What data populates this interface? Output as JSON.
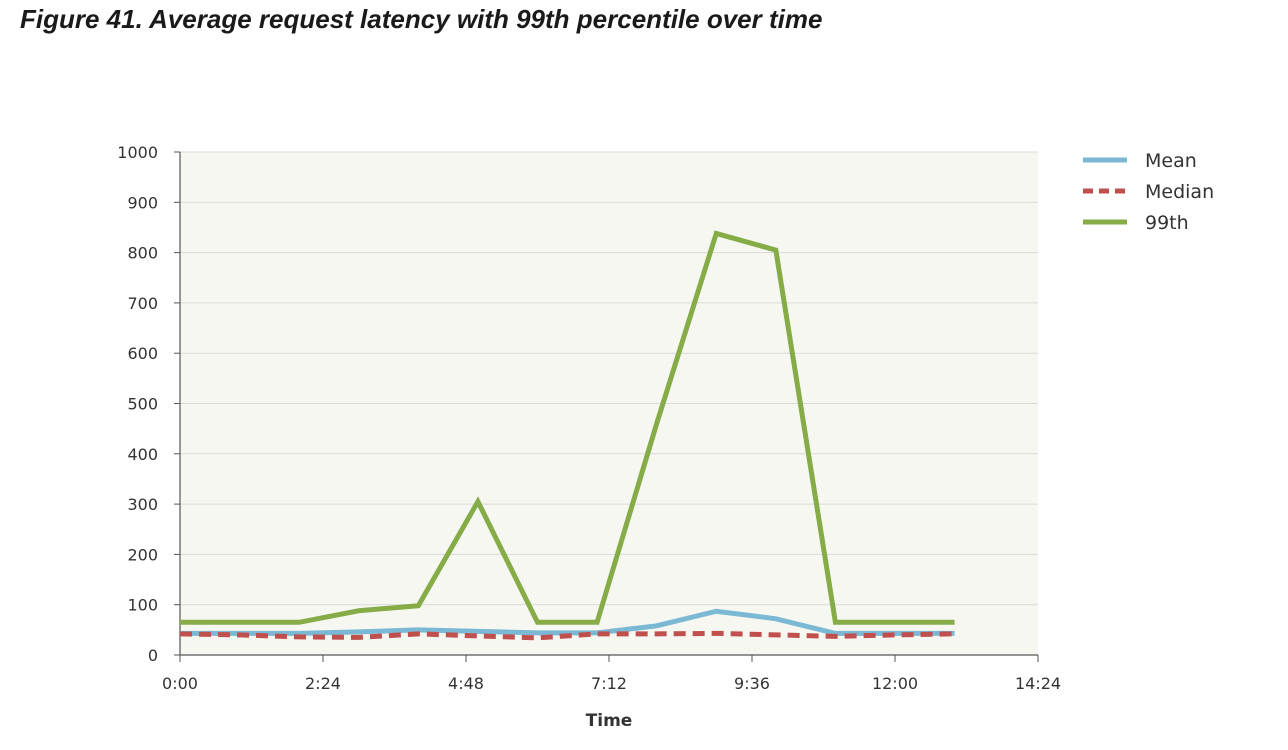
{
  "caption": "Figure 41. Average request latency with 99th percentile over time",
  "chart_data": {
    "type": "line",
    "title": "",
    "xlabel": "Time",
    "ylabel": "",
    "x_tick_labels": [
      "0:00",
      "2:24",
      "4:48",
      "7:12",
      "9:36",
      "12:00",
      "14:24"
    ],
    "x_tick_minutes": [
      0,
      144,
      288,
      432,
      576,
      720,
      864
    ],
    "y_ticks": [
      0,
      100,
      200,
      300,
      400,
      500,
      600,
      700,
      800,
      900,
      1000
    ],
    "xlim_minutes": [
      0,
      864
    ],
    "ylim": [
      0,
      1000
    ],
    "x_minutes": [
      0,
      60,
      120,
      180,
      240,
      300,
      360,
      420,
      480,
      540,
      600,
      660,
      720,
      780
    ],
    "x": [
      "0:00",
      "1:00",
      "2:00",
      "3:00",
      "4:00",
      "5:00",
      "6:00",
      "7:00",
      "8:00",
      "9:00",
      "10:00",
      "11:00",
      "12:00",
      "13:00"
    ],
    "series": [
      {
        "name": "Mean",
        "color": "#7ab8d4",
        "style": "solid",
        "values": [
          43,
          43,
          43,
          46,
          50,
          47,
          44,
          44,
          58,
          87,
          72,
          43,
          43,
          43
        ]
      },
      {
        "name": "Median",
        "color": "#c0504d",
        "style": "dashed",
        "values": [
          42,
          40,
          36,
          35,
          42,
          38,
          34,
          42,
          42,
          43,
          40,
          37,
          40,
          42
        ]
      },
      {
        "name": "99th",
        "color": "#86ac48",
        "style": "solid",
        "values": [
          65,
          65,
          65,
          88,
          98,
          305,
          65,
          65,
          460,
          838,
          805,
          65,
          65,
          65
        ]
      }
    ],
    "grid": true,
    "legend_position": "right"
  }
}
